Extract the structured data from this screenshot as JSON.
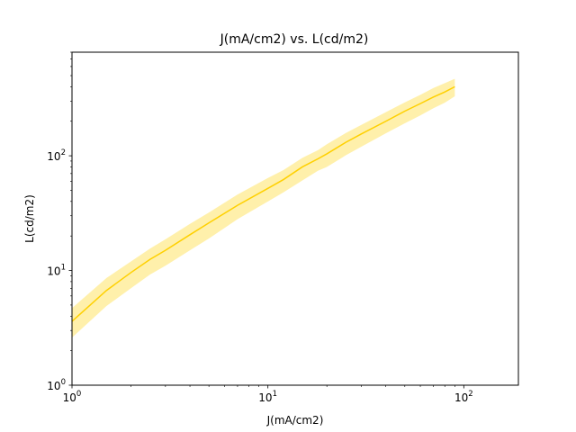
{
  "chart_data": {
    "type": "line",
    "title": "J(mA/cm2) vs. L(cd/m2)",
    "xlabel": "J(mA/cm2)",
    "ylabel": "L(cd/m2)",
    "xscale": "log",
    "yscale": "log",
    "xlim": [
      1,
      190
    ],
    "ylim": [
      1,
      800
    ],
    "xticks": [
      {
        "value": 1,
        "base": "10",
        "exp": "0"
      },
      {
        "value": 10,
        "base": "10",
        "exp": "1"
      },
      {
        "value": 100,
        "base": "10",
        "exp": "2"
      }
    ],
    "yticks": [
      {
        "value": 1,
        "base": "10",
        "exp": "0"
      },
      {
        "value": 10,
        "base": "10",
        "exp": "1"
      },
      {
        "value": 100,
        "base": "10",
        "exp": "2"
      }
    ],
    "grid": false,
    "legend": "none",
    "colors": {
      "line": "#ffd000",
      "band": "#ffd000"
    },
    "series": [
      {
        "x": [
          1.0,
          1.5,
          2.0,
          2.5,
          3.0,
          4.0,
          5.0,
          7.0,
          10.0,
          12.0,
          15.0,
          18.0,
          20.0,
          25.0,
          30.0,
          40.0,
          50.0,
          60.0,
          70.0,
          80.0,
          90.0
        ],
        "y": [
          3.6,
          6.7,
          9.6,
          12.5,
          15.0,
          20.5,
          26.0,
          37.0,
          52.0,
          62.0,
          80.0,
          94.0,
          104.0,
          131.0,
          155.0,
          200.0,
          245.0,
          285.0,
          325.0,
          360.0,
          400.0
        ],
        "lower": [
          2.6,
          4.9,
          7.0,
          9.2,
          11.0,
          15.0,
          19.0,
          28.0,
          40.0,
          48.0,
          61.0,
          74.0,
          80.0,
          101.0,
          120.0,
          157.0,
          192.0,
          225.0,
          260.0,
          290.0,
          330.0
        ],
        "upper": [
          4.7,
          8.6,
          12.0,
          15.5,
          18.7,
          25.5,
          32.0,
          46.0,
          64.0,
          75.0,
          96.0,
          112.0,
          126.0,
          158.0,
          186.0,
          240.0,
          292.0,
          340.0,
          390.0,
          430.0,
          470.0
        ]
      }
    ]
  }
}
